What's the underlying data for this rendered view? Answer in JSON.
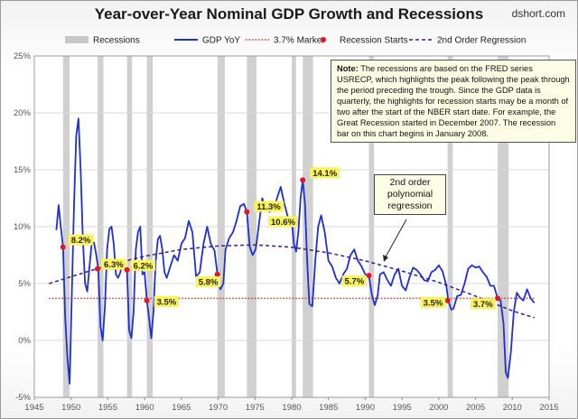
{
  "header": {
    "title": "Year-over-Year Nominal GDP Growth and Recessions",
    "source": "dshort.com"
  },
  "legend": [
    {
      "label": "Recessions",
      "kind": "bar",
      "color": "#c8c8c8"
    },
    {
      "label": "GDP YoY",
      "kind": "line",
      "color": "#1e2fd6"
    },
    {
      "label": "3.7% Marker",
      "kind": "dotted",
      "color": "#c0392b"
    },
    {
      "label": "Recession Starts",
      "kind": "dot",
      "color": "#e0142b"
    },
    {
      "label": "2nd Order Regression",
      "kind": "dashed",
      "color": "#3a1e8a"
    }
  ],
  "note": {
    "label": "Note:",
    "text": "The recessions are based on the FRED series USRECP, which highlights the peak following the peak through the period preceding the trough. Since the GDP data is quarterly, the highlights for recession starts may be a month of two after the start of the NBER start date. For example, the Great Recession started in December 2007. The recession bar on this chart begins in January 2008."
  },
  "annotation": {
    "text": "2nd order polynomial regression"
  },
  "chart_data": {
    "type": "line",
    "title": "Year-over-Year Nominal GDP Growth and Recessions",
    "x_ticks": [
      1945,
      1950,
      1955,
      1960,
      1965,
      1970,
      1975,
      1980,
      1985,
      1990,
      1995,
      2000,
      2005,
      2010,
      2015
    ],
    "y_ticks": [
      "-5%",
      "0%",
      "5%",
      "10%",
      "15%",
      "20%",
      "25%"
    ],
    "xlim": [
      1945,
      2015
    ],
    "ylim": [
      -5,
      25
    ],
    "recessions": [
      [
        1948.9,
        1949.8
      ],
      [
        1953.6,
        1954.4
      ],
      [
        1957.6,
        1958.3
      ],
      [
        1960.3,
        1961.1
      ],
      [
        1969.9,
        1970.9
      ],
      [
        1973.9,
        1975.2
      ],
      [
        1980.0,
        1980.6
      ],
      [
        1981.5,
        1982.9
      ],
      [
        1990.5,
        1991.2
      ],
      [
        2001.2,
        2001.9
      ],
      [
        2008.0,
        2009.5
      ]
    ],
    "marker": {
      "name": "3.7% Marker",
      "value": 3.7
    },
    "recession_starts": [
      {
        "x": 1948.9,
        "y": 8.2,
        "label": "8.2%"
      },
      {
        "x": 1953.6,
        "y": 6.3,
        "label": "6.3%"
      },
      {
        "x": 1957.6,
        "y": 6.2,
        "label": "6.2%"
      },
      {
        "x": 1960.3,
        "y": 3.5,
        "label": "3.5%"
      },
      {
        "x": 1969.9,
        "y": 5.8,
        "label": "5.8%"
      },
      {
        "x": 1973.9,
        "y": 11.3,
        "label": "11.3%"
      },
      {
        "x": 1980.0,
        "y": 10.6,
        "label": "10.6%"
      },
      {
        "x": 1981.5,
        "y": 14.1,
        "label": "14.1%"
      },
      {
        "x": 1990.5,
        "y": 5.7,
        "label": "5.7%"
      },
      {
        "x": 2001.2,
        "y": 3.5,
        "label": "3.5%"
      },
      {
        "x": 2008.0,
        "y": 3.7,
        "label": "3.7%"
      }
    ],
    "regression": {
      "name": "2nd Order Regression",
      "x": [
        1947,
        1955,
        1960,
        1965,
        1970,
        1975,
        1980,
        1985,
        1990,
        1995,
        2000,
        2005,
        2010,
        2013
      ],
      "y": [
        5.0,
        6.6,
        7.4,
        8.0,
        8.3,
        8.4,
        8.2,
        7.7,
        7.0,
        6.1,
        5.1,
        3.9,
        2.6,
        2.0
      ]
    },
    "series": [
      {
        "name": "GDP YoY",
        "x": [
          1948.0,
          1948.3,
          1948.6,
          1948.9,
          1949.2,
          1949.5,
          1949.8,
          1950.1,
          1950.4,
          1950.7,
          1951.0,
          1951.3,
          1951.6,
          1951.9,
          1952.2,
          1952.5,
          1952.8,
          1953.1,
          1953.4,
          1953.7,
          1954.0,
          1954.3,
          1954.6,
          1954.9,
          1955.2,
          1955.5,
          1955.8,
          1956.1,
          1956.4,
          1956.7,
          1957.0,
          1957.3,
          1957.6,
          1957.9,
          1958.2,
          1958.5,
          1958.8,
          1959.1,
          1959.4,
          1959.7,
          1960.0,
          1960.3,
          1960.6,
          1960.9,
          1961.2,
          1961.5,
          1961.8,
          1962.1,
          1962.4,
          1962.7,
          1963.0,
          1963.5,
          1964.0,
          1964.5,
          1965.0,
          1965.5,
          1966.0,
          1966.5,
          1967.0,
          1967.5,
          1968.0,
          1968.5,
          1969.0,
          1969.5,
          1969.9,
          1970.3,
          1970.7,
          1971.0,
          1971.5,
          1972.0,
          1972.5,
          1973.0,
          1973.5,
          1973.9,
          1974.3,
          1974.7,
          1975.1,
          1975.5,
          1976.0,
          1976.5,
          1977.0,
          1977.5,
          1978.0,
          1978.5,
          1979.0,
          1979.5,
          1980.0,
          1980.3,
          1980.6,
          1980.9,
          1981.2,
          1981.5,
          1981.8,
          1982.1,
          1982.4,
          1982.8,
          1983.2,
          1983.6,
          1984.0,
          1984.5,
          1985.0,
          1985.5,
          1986.0,
          1986.5,
          1987.0,
          1987.5,
          1988.0,
          1988.5,
          1989.0,
          1989.5,
          1990.0,
          1990.5,
          1990.9,
          1991.3,
          1991.7,
          1992.0,
          1992.5,
          1993.0,
          1993.5,
          1994.0,
          1994.5,
          1995.0,
          1995.5,
          1996.0,
          1996.5,
          1997.0,
          1997.5,
          1998.0,
          1998.5,
          1999.0,
          1999.5,
          2000.0,
          2000.5,
          2001.0,
          2001.3,
          2001.7,
          2002.0,
          2002.5,
          2003.0,
          2003.5,
          2004.0,
          2004.5,
          2005.0,
          2005.5,
          2006.0,
          2006.5,
          2007.0,
          2007.5,
          2008.0,
          2008.4,
          2008.8,
          2009.1,
          2009.4,
          2009.8,
          2010.2,
          2010.6,
          2011.0,
          2011.5,
          2012.0,
          2012.5,
          2013.0
        ],
        "y": [
          9.7,
          11.9,
          10.0,
          8.2,
          2.0,
          -1.5,
          -3.8,
          4.0,
          12.0,
          18.0,
          19.5,
          15.0,
          9.0,
          5.0,
          4.3,
          6.5,
          8.5,
          8.6,
          7.6,
          6.3,
          1.2,
          0.0,
          3.0,
          8.0,
          9.8,
          10.0,
          8.5,
          5.8,
          5.5,
          6.0,
          7.0,
          6.5,
          6.2,
          0.9,
          0.2,
          2.5,
          8.0,
          9.5,
          10.0,
          5.8,
          6.0,
          3.5,
          2.0,
          0.2,
          2.5,
          7.0,
          8.9,
          9.2,
          8.0,
          6.0,
          5.5,
          6.5,
          7.5,
          7.0,
          8.5,
          9.0,
          10.5,
          9.5,
          5.6,
          6.0,
          8.5,
          10.0,
          8.5,
          7.9,
          5.8,
          4.5,
          5.0,
          8.0,
          9.0,
          9.5,
          10.5,
          11.8,
          12.0,
          11.3,
          8.2,
          7.5,
          8.0,
          10.0,
          12.5,
          11.5,
          11.3,
          11.5,
          12.5,
          13.5,
          12.0,
          10.8,
          10.6,
          8.5,
          7.8,
          9.5,
          12.5,
          14.1,
          12.0,
          7.0,
          3.2,
          3.0,
          7.0,
          10.0,
          11.0,
          9.5,
          7.0,
          6.5,
          5.5,
          5.0,
          5.8,
          6.3,
          7.5,
          8.0,
          7.0,
          6.5,
          5.8,
          5.7,
          4.0,
          3.1,
          4.0,
          5.8,
          6.0,
          5.3,
          4.8,
          5.8,
          6.3,
          4.8,
          4.4,
          5.5,
          6.4,
          6.2,
          5.8,
          5.3,
          5.2,
          6.0,
          6.2,
          6.6,
          6.1,
          4.9,
          3.5,
          2.7,
          2.8,
          3.9,
          4.0,
          5.0,
          6.3,
          6.6,
          6.4,
          6.5,
          6.0,
          5.6,
          4.8,
          4.8,
          3.7,
          3.5,
          1.5,
          -2.8,
          -3.3,
          -1.0,
          2.5,
          4.2,
          3.8,
          3.5,
          4.5,
          3.7,
          3.3
        ]
      }
    ]
  }
}
